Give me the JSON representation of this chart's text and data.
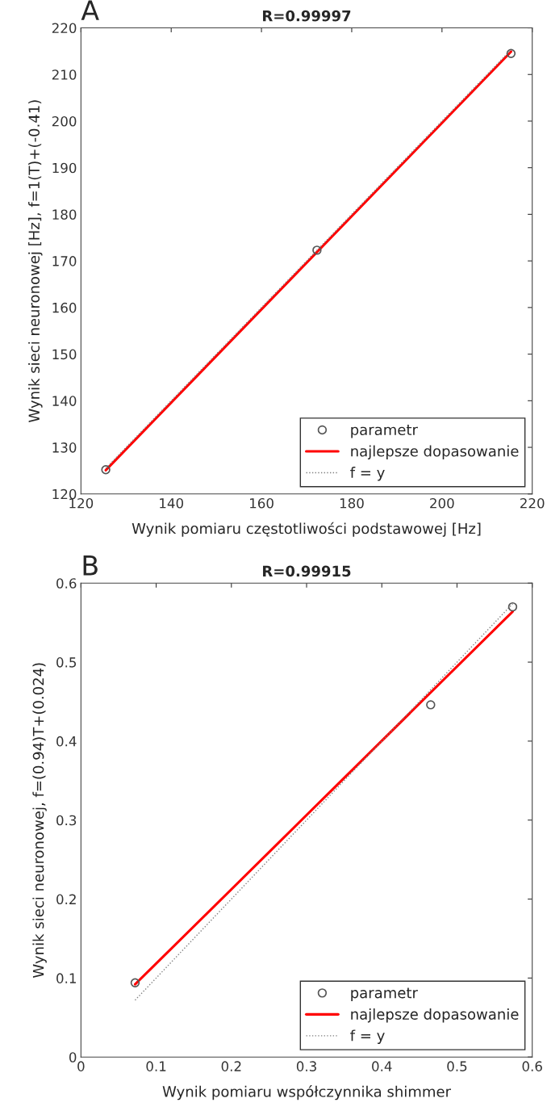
{
  "chart_data": [
    {
      "type": "scatter",
      "title": "R=0.99997",
      "xlabel": "Wynik pomiaru częstotliwości podstawowej [Hz]",
      "ylabel": "Wynik sieci neuronowej [Hz], f=1(T)+(-0.41)",
      "annotations": [
        "A"
      ],
      "xlim": [
        120,
        220
      ],
      "xticks": [
        120,
        140,
        160,
        180,
        200,
        220
      ],
      "ylim": [
        120,
        220
      ],
      "yticks": [
        120,
        130,
        140,
        150,
        160,
        170,
        180,
        190,
        200,
        210,
        220
      ],
      "grid": false,
      "legend": "bottom right",
      "series": [
        {
          "name": "parametr",
          "marker": "circle",
          "color": "#555555",
          "x": [
            125.5,
            172.3,
            215.3
          ],
          "values": [
            125.2,
            172.3,
            214.5
          ]
        },
        {
          "name": "najlepsze dopasowanie",
          "type": "line",
          "line_style": "solid",
          "color": "#ff0000",
          "x": [
            125.5,
            215.3
          ],
          "values": [
            125.1,
            214.9
          ]
        },
        {
          "name": "f = y",
          "type": "line",
          "line_style": "dotted",
          "color": "#808080",
          "x": [
            125.5,
            215.3
          ],
          "values": [
            125.5,
            215.3
          ]
        }
      ]
    },
    {
      "type": "scatter",
      "title": "R=0.99915",
      "xlabel": "Wynik pomiaru współczynnika shimmer",
      "ylabel": "Wynik sieci neuronowej, f=(0.94)T+(0.024)",
      "annotations": [
        "B"
      ],
      "xlim": [
        0,
        0.6
      ],
      "xticks": [
        0,
        0.1,
        0.2,
        0.3,
        0.4,
        0.5,
        0.6
      ],
      "ylim": [
        0,
        0.6
      ],
      "yticks": [
        0,
        0.1,
        0.2,
        0.3,
        0.4,
        0.5,
        0.6
      ],
      "grid": false,
      "legend": "bottom right",
      "series": [
        {
          "name": "parametr",
          "marker": "circle",
          "color": "#555555",
          "x": [
            0.072,
            0.465,
            0.574
          ],
          "values": [
            0.094,
            0.446,
            0.57
          ]
        },
        {
          "name": "najlepsze dopasowanie",
          "type": "line",
          "line_style": "solid",
          "color": "#ff0000",
          "x": [
            0.072,
            0.574
          ],
          "values": [
            0.092,
            0.564
          ]
        },
        {
          "name": "f = y",
          "type": "line",
          "line_style": "dotted",
          "color": "#808080",
          "x": [
            0.072,
            0.574
          ],
          "values": [
            0.072,
            0.574
          ]
        }
      ]
    }
  ]
}
